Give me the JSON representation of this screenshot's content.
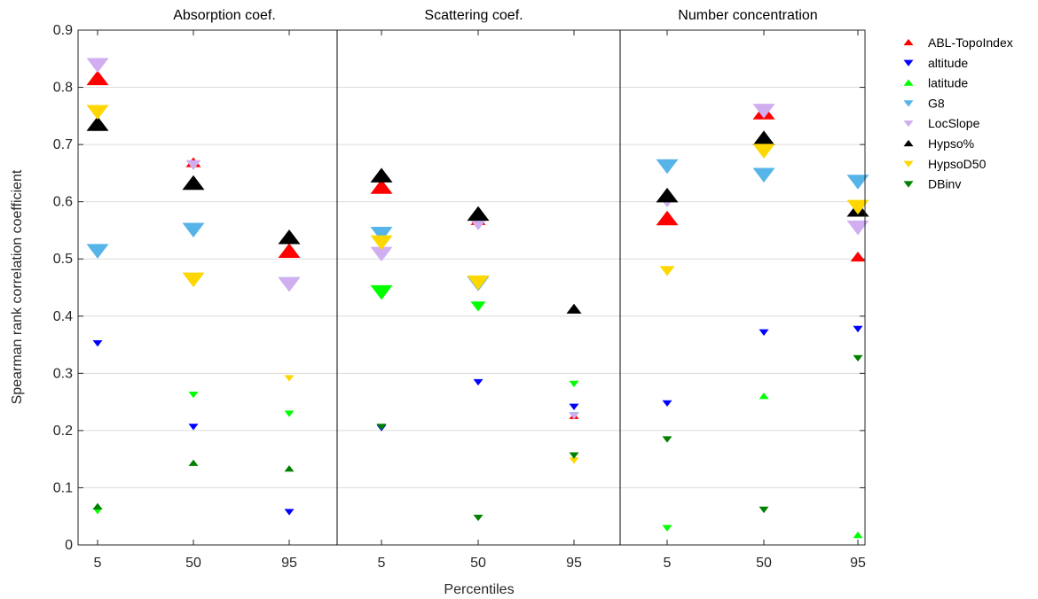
{
  "chart_data": {
    "type": "scatter",
    "xlabel": "Percentiles",
    "ylabel": "Spearman rank correlation coefficient",
    "ylim": [
      0,
      0.9
    ],
    "yticks": [
      "0",
      "0.1",
      "0.2",
      "0.3",
      "0.4",
      "0.5",
      "0.6",
      "0.7",
      "0.8",
      "0.9"
    ],
    "categories": [
      "5",
      "50",
      "95"
    ],
    "grid": "horizontal",
    "legend_position": "right",
    "panels": [
      {
        "title": "Absorption coef.",
        "series": [
          {
            "name": "ABL-TopoIndex",
            "points": [
              {
                "x": "5",
                "y": 0.815,
                "size": "large"
              },
              {
                "x": "50",
                "y": 0.668,
                "size": "medium"
              },
              {
                "x": "95",
                "y": 0.513,
                "size": "large"
              }
            ]
          },
          {
            "name": "altitude",
            "points": [
              {
                "x": "5",
                "y": 0.353,
                "size": "small"
              },
              {
                "x": "50",
                "y": 0.207,
                "size": "small"
              },
              {
                "x": "95",
                "y": 0.058,
                "size": "small"
              }
            ]
          },
          {
            "name": "latitude",
            "points": [
              {
                "x": "5",
                "y": 0.06,
                "size": "small"
              },
              {
                "x": "50",
                "y": 0.263,
                "size": "small"
              },
              {
                "x": "95",
                "y": 0.23,
                "size": "small"
              }
            ]
          },
          {
            "name": "G8",
            "points": [
              {
                "x": "5",
                "y": 0.515,
                "size": "large"
              },
              {
                "x": "50",
                "y": 0.552,
                "size": "large"
              },
              {
                "x": "95",
                "y": 0.457,
                "size": "large"
              }
            ]
          },
          {
            "name": "LocSlope",
            "points": [
              {
                "x": "5",
                "y": 0.84,
                "size": "large"
              },
              {
                "x": "50",
                "y": 0.665,
                "size": "medium"
              },
              {
                "x": "95",
                "y": 0.457,
                "size": "large"
              }
            ]
          },
          {
            "name": "Hypso%",
            "points": [
              {
                "x": "5",
                "y": 0.735,
                "size": "large"
              },
              {
                "x": "50",
                "y": 0.632,
                "size": "large"
              },
              {
                "x": "95",
                "y": 0.537,
                "size": "large"
              }
            ]
          },
          {
            "name": "HypsoD50",
            "points": [
              {
                "x": "5",
                "y": 0.758,
                "size": "large"
              },
              {
                "x": "50",
                "y": 0.465,
                "size": "large"
              },
              {
                "x": "95",
                "y": 0.292,
                "size": "small"
              }
            ]
          },
          {
            "name": "DBinv",
            "points": [
              {
                "x": "5",
                "y": 0.067,
                "size": "small"
              },
              {
                "x": "50",
                "y": 0.143,
                "size": "small"
              },
              {
                "x": "95",
                "y": 0.133,
                "size": "small"
              }
            ]
          }
        ]
      },
      {
        "title": "Scattering coef.",
        "series": [
          {
            "name": "ABL-TopoIndex",
            "points": [
              {
                "x": "5",
                "y": 0.625,
                "size": "large"
              },
              {
                "x": "50",
                "y": 0.567,
                "size": "medium"
              },
              {
                "x": "95",
                "y": 0.225,
                "size": "small"
              }
            ]
          },
          {
            "name": "altitude",
            "points": [
              {
                "x": "5",
                "y": 0.205,
                "size": "small"
              },
              {
                "x": "50",
                "y": 0.285,
                "size": "small"
              },
              {
                "x": "95",
                "y": 0.242,
                "size": "small"
              }
            ]
          },
          {
            "name": "latitude",
            "points": [
              {
                "x": "5",
                "y": 0.443,
                "size": "large"
              },
              {
                "x": "50",
                "y": 0.418,
                "size": "medium"
              },
              {
                "x": "95",
                "y": 0.282,
                "size": "small"
              }
            ]
          },
          {
            "name": "G8",
            "points": [
              {
                "x": "5",
                "y": 0.545,
                "size": "large"
              },
              {
                "x": "50",
                "y": 0.458,
                "size": "large"
              },
              {
                "x": "95",
                "y": 0.227,
                "size": "small"
              }
            ]
          },
          {
            "name": "LocSlope",
            "points": [
              {
                "x": "5",
                "y": 0.51,
                "size": "large"
              },
              {
                "x": "50",
                "y": 0.56,
                "size": "medium"
              },
              {
                "x": "95",
                "y": 0.226,
                "size": "small"
              }
            ]
          },
          {
            "name": "Hypso%",
            "points": [
              {
                "x": "5",
                "y": 0.645,
                "size": "large"
              },
              {
                "x": "50",
                "y": 0.578,
                "size": "large"
              },
              {
                "x": "95",
                "y": 0.412,
                "size": "medium"
              }
            ]
          },
          {
            "name": "HypsoD50",
            "points": [
              {
                "x": "5",
                "y": 0.53,
                "size": "large"
              },
              {
                "x": "50",
                "y": 0.46,
                "size": "large"
              },
              {
                "x": "95",
                "y": 0.148,
                "size": "small"
              }
            ]
          },
          {
            "name": "DBinv",
            "points": [
              {
                "x": "5",
                "y": 0.207,
                "size": "small"
              },
              {
                "x": "50",
                "y": 0.048,
                "size": "small"
              },
              {
                "x": "95",
                "y": 0.157,
                "size": "small"
              }
            ]
          }
        ]
      },
      {
        "title": "Number concentration",
        "series": [
          {
            "name": "ABL-TopoIndex",
            "points": [
              {
                "x": "5",
                "y": 0.57,
                "size": "large"
              },
              {
                "x": "50",
                "y": 0.755,
                "size": "large"
              },
              {
                "x": "95",
                "y": 0.503,
                "size": "medium"
              }
            ]
          },
          {
            "name": "altitude",
            "points": [
              {
                "x": "5",
                "y": 0.248,
                "size": "small"
              },
              {
                "x": "50",
                "y": 0.372,
                "size": "small"
              },
              {
                "x": "95",
                "y": 0.378,
                "size": "small"
              }
            ]
          },
          {
            "name": "latitude",
            "points": [
              {
                "x": "5",
                "y": 0.03,
                "size": "small"
              },
              {
                "x": "50",
                "y": 0.26,
                "size": "small"
              },
              {
                "x": "95",
                "y": 0.017,
                "size": "small"
              }
            ]
          },
          {
            "name": "G8",
            "points": [
              {
                "x": "5",
                "y": 0.663,
                "size": "large"
              },
              {
                "x": "50",
                "y": 0.648,
                "size": "large"
              },
              {
                "x": "95",
                "y": 0.636,
                "size": "large"
              }
            ]
          },
          {
            "name": "LocSlope",
            "points": [
              {
                "x": "5",
                "y": 0.6,
                "size": "medium"
              },
              {
                "x": "50",
                "y": 0.76,
                "size": "large"
              },
              {
                "x": "95",
                "y": 0.556,
                "size": "large"
              }
            ]
          },
          {
            "name": "Hypso%",
            "points": [
              {
                "x": "5",
                "y": 0.61,
                "size": "large"
              },
              {
                "x": "50",
                "y": 0.71,
                "size": "large"
              },
              {
                "x": "95",
                "y": 0.585,
                "size": "large"
              }
            ]
          },
          {
            "name": "HypsoD50",
            "points": [
              {
                "x": "5",
                "y": 0.48,
                "size": "medium"
              },
              {
                "x": "50",
                "y": 0.69,
                "size": "large"
              },
              {
                "x": "95",
                "y": 0.592,
                "size": "large"
              }
            ]
          },
          {
            "name": "DBinv",
            "points": [
              {
                "x": "5",
                "y": 0.185,
                "size": "small"
              },
              {
                "x": "50",
                "y": 0.062,
                "size": "small"
              },
              {
                "x": "95",
                "y": 0.327,
                "size": "small"
              }
            ]
          }
        ]
      }
    ],
    "legend": [
      {
        "name": "ABL-TopoIndex",
        "color": "#ff0000",
        "marker": "triangle-up"
      },
      {
        "name": "altitude",
        "color": "#0000ff",
        "marker": "triangle-down"
      },
      {
        "name": "latitude",
        "color": "#00ff00",
        "marker": "triangle-up"
      },
      {
        "name": "G8",
        "color": "#56b4e9",
        "marker": "triangle-down"
      },
      {
        "name": "LocSlope",
        "color": "#d0aef0",
        "marker": "triangle-down"
      },
      {
        "name": "Hypso%",
        "color": "#000000",
        "marker": "triangle-up"
      },
      {
        "name": "HypsoD50",
        "color": "#ffd700",
        "marker": "triangle-down"
      },
      {
        "name": "DBinv",
        "color": "#008000",
        "marker": "triangle-down"
      }
    ],
    "point_orientation_note": "triangle-up = positive, triangle-down = negative correlation (as marked)",
    "orientation": {
      "Absorption coef.": {
        "ABL-TopoIndex": [
          "up",
          "up",
          "up"
        ],
        "altitude": [
          "down",
          "down",
          "down"
        ],
        "latitude": [
          "down",
          "down",
          "down"
        ],
        "G8": [
          "down",
          "down",
          "down"
        ],
        "LocSlope": [
          "down",
          "down",
          "down"
        ],
        "Hypso%": [
          "up",
          "up",
          "up"
        ],
        "HypsoD50": [
          "down",
          "down",
          "down"
        ],
        "DBinv": [
          "up",
          "up",
          "up"
        ]
      },
      "Scattering coef.": {
        "ABL-TopoIndex": [
          "up",
          "up",
          "up"
        ],
        "altitude": [
          "down",
          "down",
          "down"
        ],
        "latitude": [
          "down",
          "down",
          "down"
        ],
        "G8": [
          "down",
          "down",
          "down"
        ],
        "LocSlope": [
          "down",
          "down",
          "down"
        ],
        "Hypso%": [
          "up",
          "up",
          "up"
        ],
        "HypsoD50": [
          "down",
          "down",
          "down"
        ],
        "DBinv": [
          "down",
          "down",
          "down"
        ]
      },
      "Number concentration": {
        "ABL-TopoIndex": [
          "up",
          "up",
          "up"
        ],
        "altitude": [
          "down",
          "down",
          "down"
        ],
        "latitude": [
          "down",
          "up",
          "up"
        ],
        "G8": [
          "down",
          "down",
          "down"
        ],
        "LocSlope": [
          "down",
          "down",
          "down"
        ],
        "Hypso%": [
          "up",
          "up",
          "up"
        ],
        "HypsoD50": [
          "down",
          "down",
          "down"
        ],
        "DBinv": [
          "down",
          "down",
          "down"
        ]
      }
    }
  }
}
